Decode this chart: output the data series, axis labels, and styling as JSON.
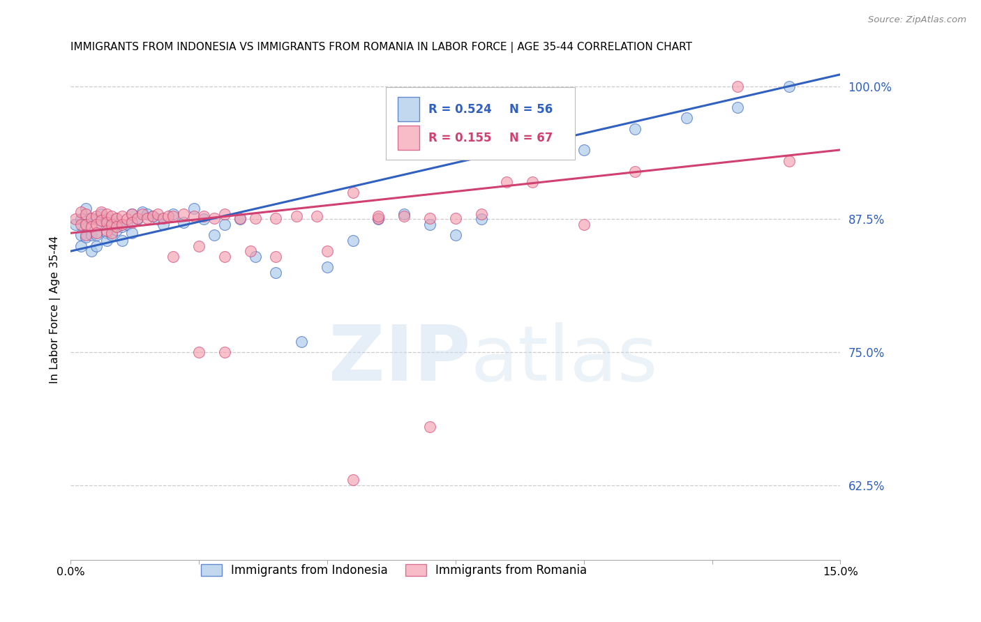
{
  "title": "IMMIGRANTS FROM INDONESIA VS IMMIGRANTS FROM ROMANIA IN LABOR FORCE | AGE 35-44 CORRELATION CHART",
  "source": "Source: ZipAtlas.com",
  "ylabel": "In Labor Force | Age 35-44",
  "ytick_labels": [
    "100.0%",
    "87.5%",
    "75.0%",
    "62.5%"
  ],
  "ytick_values": [
    1.0,
    0.875,
    0.75,
    0.625
  ],
  "xmin": 0.0,
  "xmax": 0.15,
  "ymin": 0.555,
  "ymax": 1.025,
  "legend_r1": "R = 0.524",
  "legend_n1": "N = 56",
  "legend_r2": "R = 0.155",
  "legend_n2": "N = 67",
  "color_indonesia": "#a8c8e8",
  "color_romania": "#f4a0b0",
  "color_line_indonesia": "#3060c0",
  "color_line_romania": "#d04070",
  "color_yticks": "#3060c0",
  "indo_line_x0": 0.0,
  "indo_line_y0": 0.845,
  "indo_line_x1": 0.14,
  "indo_line_y1": 1.0,
  "rom_line_x0": 0.0,
  "rom_line_y0": 0.862,
  "rom_line_x1": 0.14,
  "rom_line_y1": 0.935,
  "indonesia_x": [
    0.001,
    0.002,
    0.002,
    0.002,
    0.003,
    0.003,
    0.003,
    0.004,
    0.004,
    0.004,
    0.005,
    0.005,
    0.005,
    0.006,
    0.006,
    0.007,
    0.007,
    0.007,
    0.008,
    0.008,
    0.009,
    0.009,
    0.01,
    0.01,
    0.011,
    0.012,
    0.012,
    0.013,
    0.014,
    0.015,
    0.016,
    0.017,
    0.018,
    0.02,
    0.022,
    0.024,
    0.026,
    0.028,
    0.03,
    0.033,
    0.036,
    0.04,
    0.045,
    0.05,
    0.055,
    0.06,
    0.065,
    0.07,
    0.075,
    0.08,
    0.09,
    0.1,
    0.11,
    0.12,
    0.13,
    0.14
  ],
  "indonesia_y": [
    0.87,
    0.875,
    0.86,
    0.85,
    0.885,
    0.87,
    0.858,
    0.875,
    0.86,
    0.845,
    0.875,
    0.86,
    0.85,
    0.88,
    0.87,
    0.875,
    0.862,
    0.855,
    0.872,
    0.86,
    0.875,
    0.865,
    0.868,
    0.855,
    0.87,
    0.88,
    0.862,
    0.875,
    0.882,
    0.88,
    0.878,
    0.875,
    0.87,
    0.88,
    0.872,
    0.885,
    0.875,
    0.86,
    0.87,
    0.875,
    0.84,
    0.825,
    0.76,
    0.83,
    0.855,
    0.875,
    0.88,
    0.87,
    0.86,
    0.875,
    0.96,
    0.94,
    0.96,
    0.97,
    0.98,
    1.0
  ],
  "romania_x": [
    0.001,
    0.002,
    0.002,
    0.003,
    0.003,
    0.003,
    0.004,
    0.004,
    0.005,
    0.005,
    0.005,
    0.006,
    0.006,
    0.007,
    0.007,
    0.007,
    0.008,
    0.008,
    0.008,
    0.009,
    0.009,
    0.01,
    0.01,
    0.011,
    0.012,
    0.012,
    0.013,
    0.014,
    0.015,
    0.016,
    0.017,
    0.018,
    0.019,
    0.02,
    0.022,
    0.024,
    0.026,
    0.028,
    0.03,
    0.033,
    0.036,
    0.04,
    0.044,
    0.048,
    0.055,
    0.06,
    0.065,
    0.07,
    0.075,
    0.08,
    0.02,
    0.025,
    0.03,
    0.035,
    0.04,
    0.05,
    0.06,
    0.025,
    0.03,
    0.085,
    0.09,
    0.1,
    0.11,
    0.13,
    0.14,
    0.055,
    0.07
  ],
  "romania_y": [
    0.875,
    0.882,
    0.87,
    0.88,
    0.87,
    0.86,
    0.876,
    0.868,
    0.878,
    0.87,
    0.862,
    0.882,
    0.874,
    0.88,
    0.872,
    0.864,
    0.878,
    0.87,
    0.862,
    0.876,
    0.868,
    0.878,
    0.87,
    0.875,
    0.88,
    0.872,
    0.876,
    0.88,
    0.876,
    0.878,
    0.88,
    0.876,
    0.878,
    0.878,
    0.88,
    0.878,
    0.878,
    0.876,
    0.88,
    0.876,
    0.876,
    0.876,
    0.878,
    0.878,
    0.9,
    0.876,
    0.878,
    0.876,
    0.876,
    0.88,
    0.84,
    0.85,
    0.84,
    0.845,
    0.84,
    0.845,
    0.878,
    0.75,
    0.75,
    0.91,
    0.91,
    0.87,
    0.92,
    1.0,
    0.93,
    0.63,
    0.68
  ]
}
